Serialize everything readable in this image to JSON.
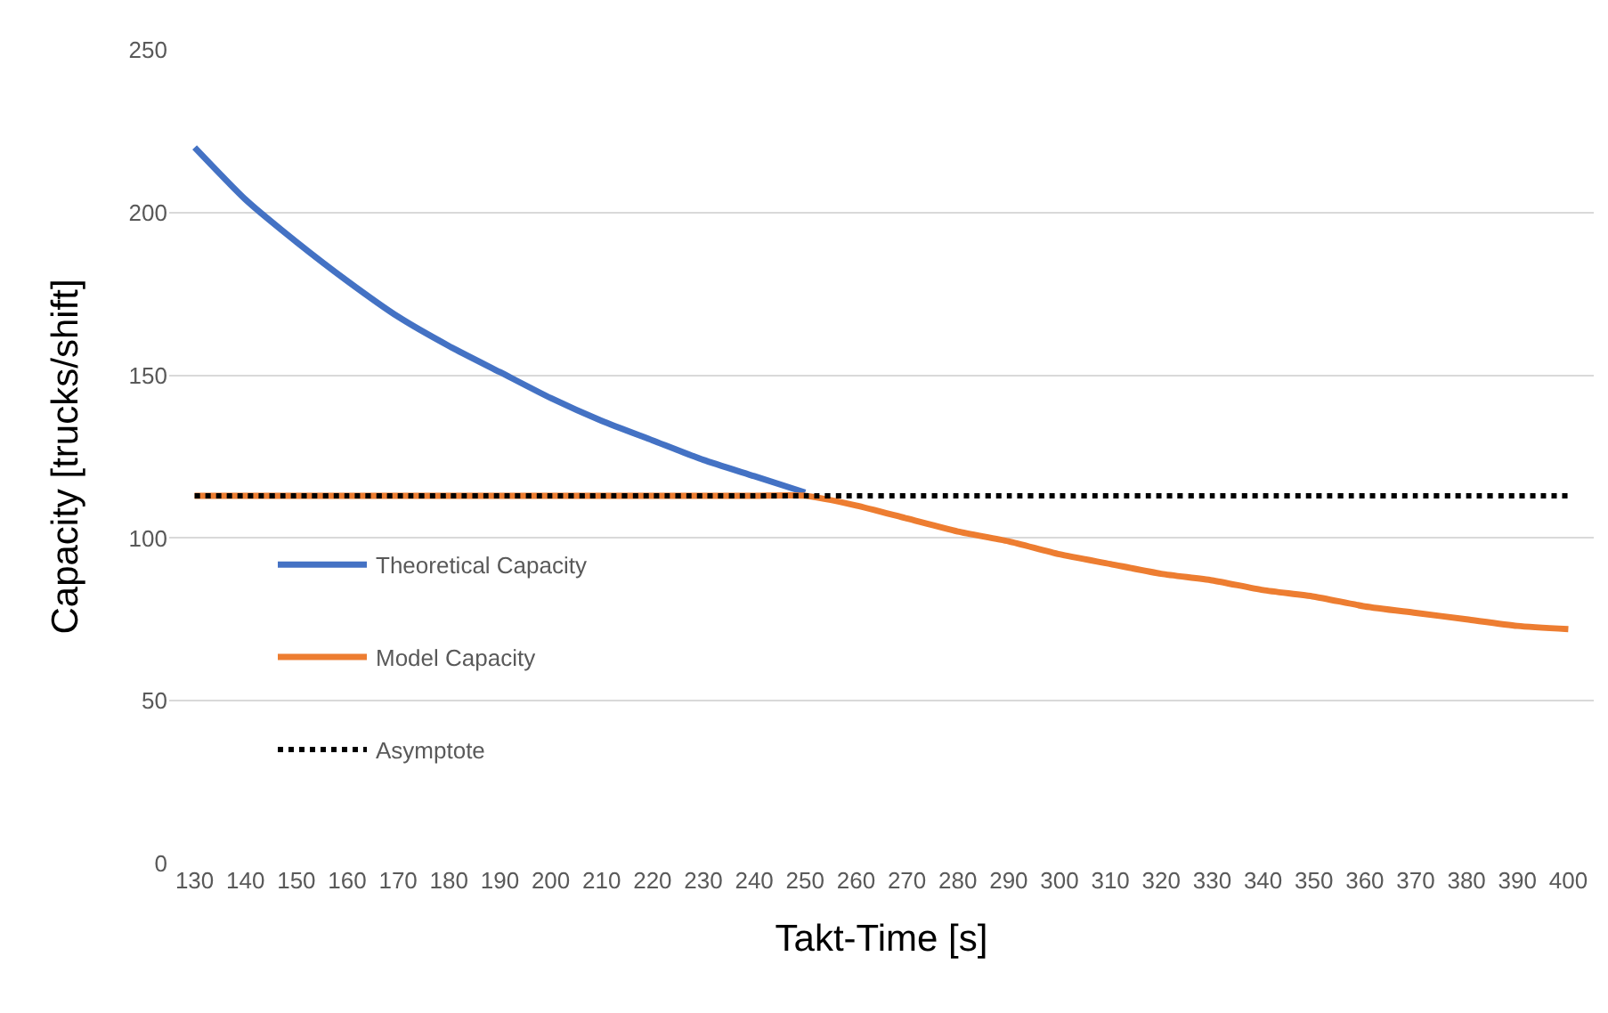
{
  "chart_data": {
    "type": "line",
    "xlabel": "Takt-Time [s]",
    "ylabel": "Capacity [trucks/shift]",
    "categories": [
      "130",
      "140",
      "150",
      "160",
      "170",
      "180",
      "190",
      "200",
      "210",
      "220",
      "230",
      "240",
      "250",
      "260",
      "270",
      "280",
      "290",
      "300",
      "310",
      "320",
      "330",
      "340",
      "350",
      "360",
      "370",
      "380",
      "390",
      "400"
    ],
    "series": [
      {
        "name": "Theoretical Capacity",
        "color": "#4472c4",
        "line_style": "solid",
        "values": [
          220,
          204,
          191,
          179,
          168,
          159,
          151,
          143,
          136,
          130,
          124,
          119,
          114,
          null,
          null,
          null,
          null,
          null,
          null,
          null,
          null,
          null,
          null,
          null,
          null,
          null,
          null,
          null
        ]
      },
      {
        "name": "Model Capacity",
        "color": "#ed7d31",
        "line_style": "solid",
        "values": [
          113,
          113,
          113,
          113,
          113,
          113,
          113,
          113,
          113,
          113,
          113,
          113,
          113,
          110,
          106,
          102,
          99,
          95,
          92,
          89,
          87,
          84,
          82,
          79,
          77,
          75,
          73,
          72
        ]
      },
      {
        "name": "Asymptote",
        "color": "#000000",
        "line_style": "dotted",
        "values": [
          113,
          113,
          113,
          113,
          113,
          113,
          113,
          113,
          113,
          113,
          113,
          113,
          113,
          113,
          113,
          113,
          113,
          113,
          113,
          113,
          113,
          113,
          113,
          113,
          113,
          113,
          113,
          113
        ]
      }
    ],
    "ylim": [
      0,
      250
    ],
    "yticks": [
      0,
      50,
      100,
      150,
      200,
      250
    ],
    "grid": "y",
    "legend": "left",
    "marker": "none"
  }
}
